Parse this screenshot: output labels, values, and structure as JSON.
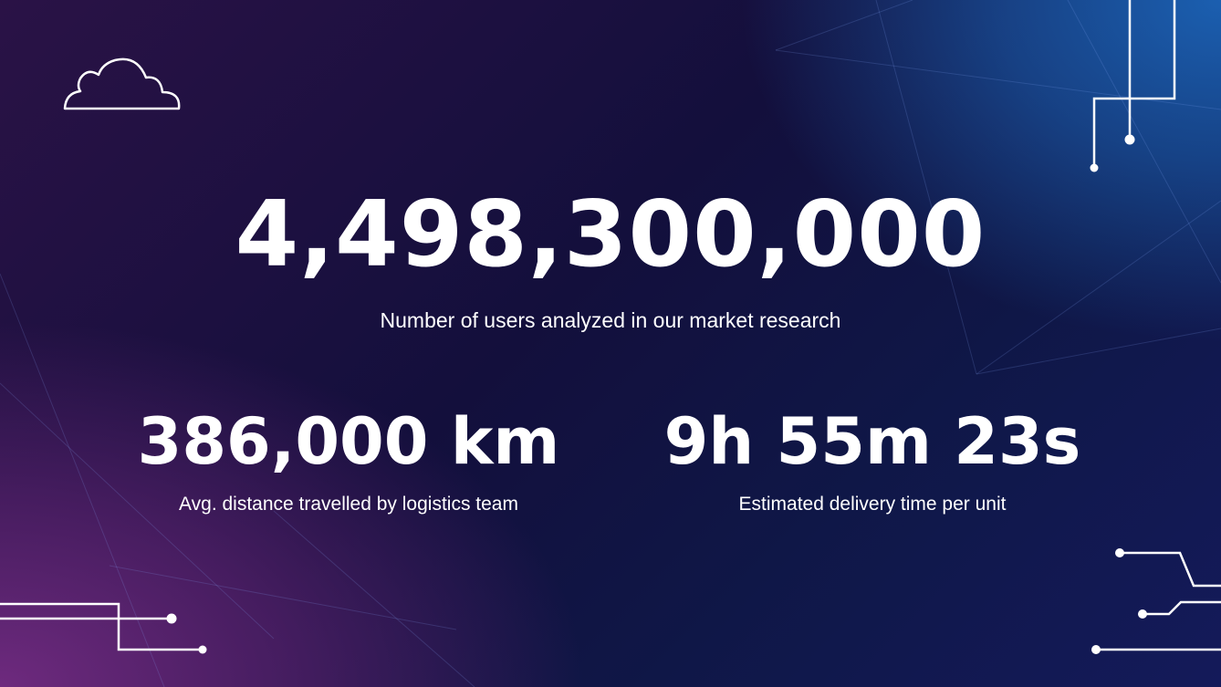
{
  "main": {
    "value": "4,498,300,000",
    "label": "Number of users analyzed in our market research"
  },
  "stats": [
    {
      "value": "386,000 km",
      "label": "Avg. distance travelled by logistics team"
    },
    {
      "value": "9h 55m 23s",
      "label": "Estimated delivery time per unit"
    }
  ],
  "icons": {
    "cloud": "cloud-icon",
    "circuit": "circuit-lines"
  },
  "colors": {
    "purple": "#6e2a7e",
    "navy": "#130f3c",
    "blue": "#1b5fb0",
    "text": "#ffffff"
  }
}
